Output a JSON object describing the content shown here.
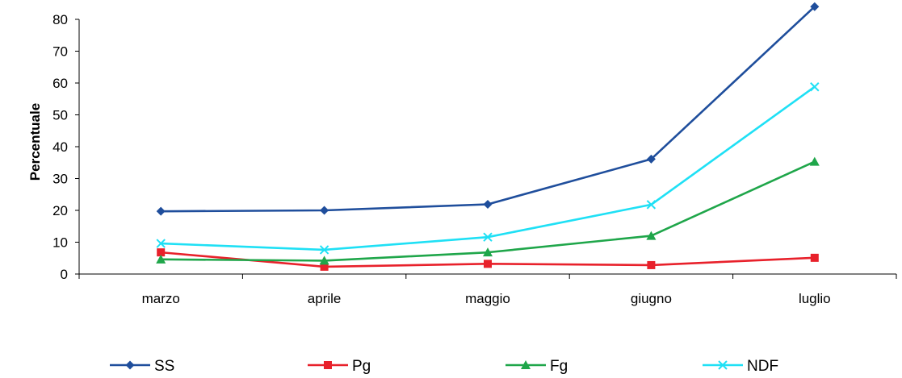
{
  "chart_data": {
    "type": "line",
    "title": "",
    "xlabel": "",
    "ylabel": "Percentuale",
    "categories": [
      "marzo",
      "aprile",
      "maggio",
      "giugno",
      "luglio"
    ],
    "ylim": [
      0,
      80
    ],
    "yticks": [
      0,
      10,
      20,
      30,
      40,
      50,
      60,
      70,
      80
    ],
    "grid": false,
    "legend_position": "bottom",
    "series": [
      {
        "name": "SS",
        "values": [
          19.7,
          20.0,
          21.9,
          36.1,
          84.0
        ],
        "color": "#1f4e9c",
        "marker": "diamond"
      },
      {
        "name": "Pg",
        "values": [
          6.8,
          2.3,
          3.2,
          2.8,
          5.1
        ],
        "color": "#e8212b",
        "marker": "square"
      },
      {
        "name": "Fg",
        "values": [
          4.6,
          4.2,
          6.8,
          12.0,
          35.3
        ],
        "color": "#1fa64a",
        "marker": "triangle"
      },
      {
        "name": "NDF",
        "values": [
          9.6,
          7.6,
          11.6,
          21.8,
          58.8
        ],
        "color": "#1fe0f5",
        "marker": "x"
      }
    ]
  }
}
